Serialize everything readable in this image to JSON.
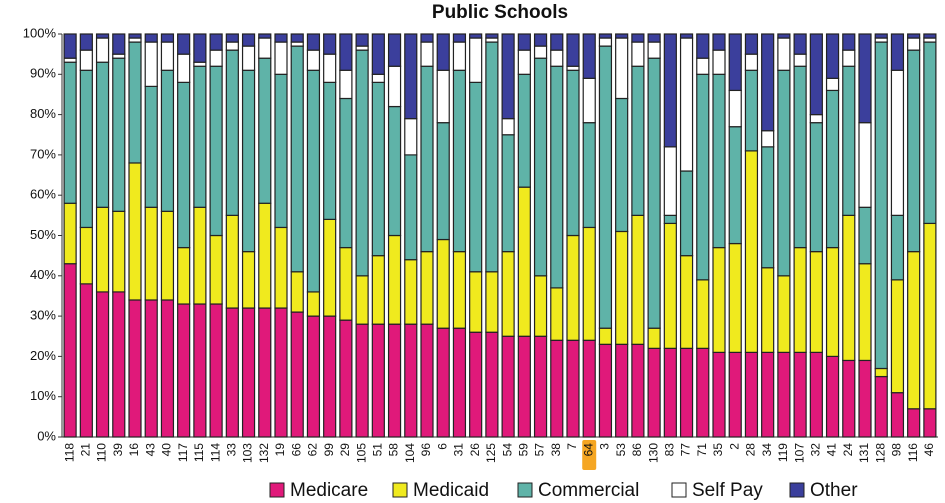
{
  "chart_data": {
    "type": "stacked_bar",
    "title": "Public Schools",
    "categories": [
      "118",
      "21",
      "110",
      "39",
      "16",
      "43",
      "40",
      "117",
      "115",
      "114",
      "33",
      "103",
      "132",
      "19",
      "66",
      "62",
      "99",
      "29",
      "105",
      "51",
      "58",
      "104",
      "96",
      "6",
      "31",
      "26",
      "125",
      "54",
      "59",
      "57",
      "38",
      "7",
      "64",
      "3",
      "53",
      "86",
      "130",
      "83",
      "77",
      "71",
      "35",
      "2",
      "28",
      "34",
      "119",
      "107",
      "32",
      "41",
      "24",
      "131",
      "128",
      "98",
      "116",
      "46"
    ],
    "series": [
      {
        "name": "Medicare",
        "color": "#e0197a",
        "values": [
          43,
          38,
          36,
          36,
          34,
          34,
          34,
          33,
          33,
          33,
          32,
          32,
          32,
          32,
          31,
          30,
          30,
          29,
          28,
          28,
          28,
          28,
          28,
          27,
          27,
          26,
          26,
          25,
          25,
          25,
          24,
          24,
          24,
          23,
          23,
          23,
          22,
          22,
          22,
          22,
          21,
          21,
          21,
          21,
          21,
          21,
          21,
          20,
          19,
          19,
          15,
          11,
          7,
          7
        ]
      },
      {
        "name": "Medicaid",
        "color": "#f0ea1e",
        "values": [
          15,
          14,
          21,
          20,
          34,
          23,
          22,
          14,
          24,
          17,
          23,
          14,
          26,
          20,
          10,
          6,
          24,
          18,
          12,
          17,
          22,
          16,
          18,
          22,
          19,
          15,
          15,
          21,
          37,
          15,
          13,
          26,
          28,
          4,
          28,
          32,
          5,
          31,
          23,
          17,
          26,
          27,
          50,
          21,
          19,
          26,
          25,
          27,
          36,
          24,
          2,
          28,
          39,
          46
        ]
      },
      {
        "name": "Commercial",
        "color": "#5fb3a8",
        "values": [
          35,
          39,
          36,
          38,
          30,
          30,
          35,
          41,
          35,
          42,
          41,
          45,
          36,
          38,
          56,
          55,
          34,
          37,
          56,
          43,
          32,
          26,
          46,
          29,
          45,
          47,
          57,
          29,
          28,
          54,
          55,
          41,
          26,
          70,
          33,
          37,
          67,
          2,
          21,
          51,
          43,
          29,
          20,
          30,
          51,
          45,
          32,
          39,
          37,
          14,
          81,
          16,
          50,
          45
        ]
      },
      {
        "name": "Self Pay",
        "color": "#ffffff",
        "values": [
          1,
          5,
          6,
          1,
          1,
          11,
          7,
          7,
          1,
          4,
          2,
          6,
          5,
          8,
          1,
          5,
          7,
          7,
          1,
          2,
          10,
          9,
          6,
          13,
          7,
          11,
          1,
          4,
          6,
          3,
          4,
          1,
          11,
          2,
          15,
          6,
          4,
          17,
          33,
          4,
          6,
          9,
          4,
          4,
          8,
          3,
          2,
          3,
          4,
          21,
          1,
          36,
          3,
          1
        ]
      },
      {
        "name": "Other",
        "color": "#3b3f9c",
        "values": [
          6,
          4,
          1,
          5,
          1,
          2,
          2,
          5,
          7,
          4,
          2,
          3,
          1,
          2,
          2,
          4,
          5,
          9,
          3,
          10,
          8,
          21,
          2,
          9,
          2,
          1,
          1,
          21,
          4,
          3,
          4,
          8,
          11,
          1,
          1,
          2,
          2,
          28,
          1,
          6,
          4,
          14,
          5,
          24,
          1,
          5,
          20,
          11,
          4,
          22,
          1,
          9,
          1,
          1
        ]
      }
    ],
    "ylim": [
      0,
      100
    ],
    "yticks": [
      {
        "value": 0,
        "label": "0%"
      },
      {
        "value": 10,
        "label": "10%"
      },
      {
        "value": 20,
        "label": "20%"
      },
      {
        "value": 30,
        "label": "30%"
      },
      {
        "value": 40,
        "label": "40%"
      },
      {
        "value": 50,
        "label": "50%"
      },
      {
        "value": 60,
        "label": "60%"
      },
      {
        "value": 70,
        "label": "70%"
      },
      {
        "value": 80,
        "label": "80%"
      },
      {
        "value": 90,
        "label": "90%"
      },
      {
        "value": 100,
        "label": "100%"
      }
    ],
    "grid": false
  }
}
